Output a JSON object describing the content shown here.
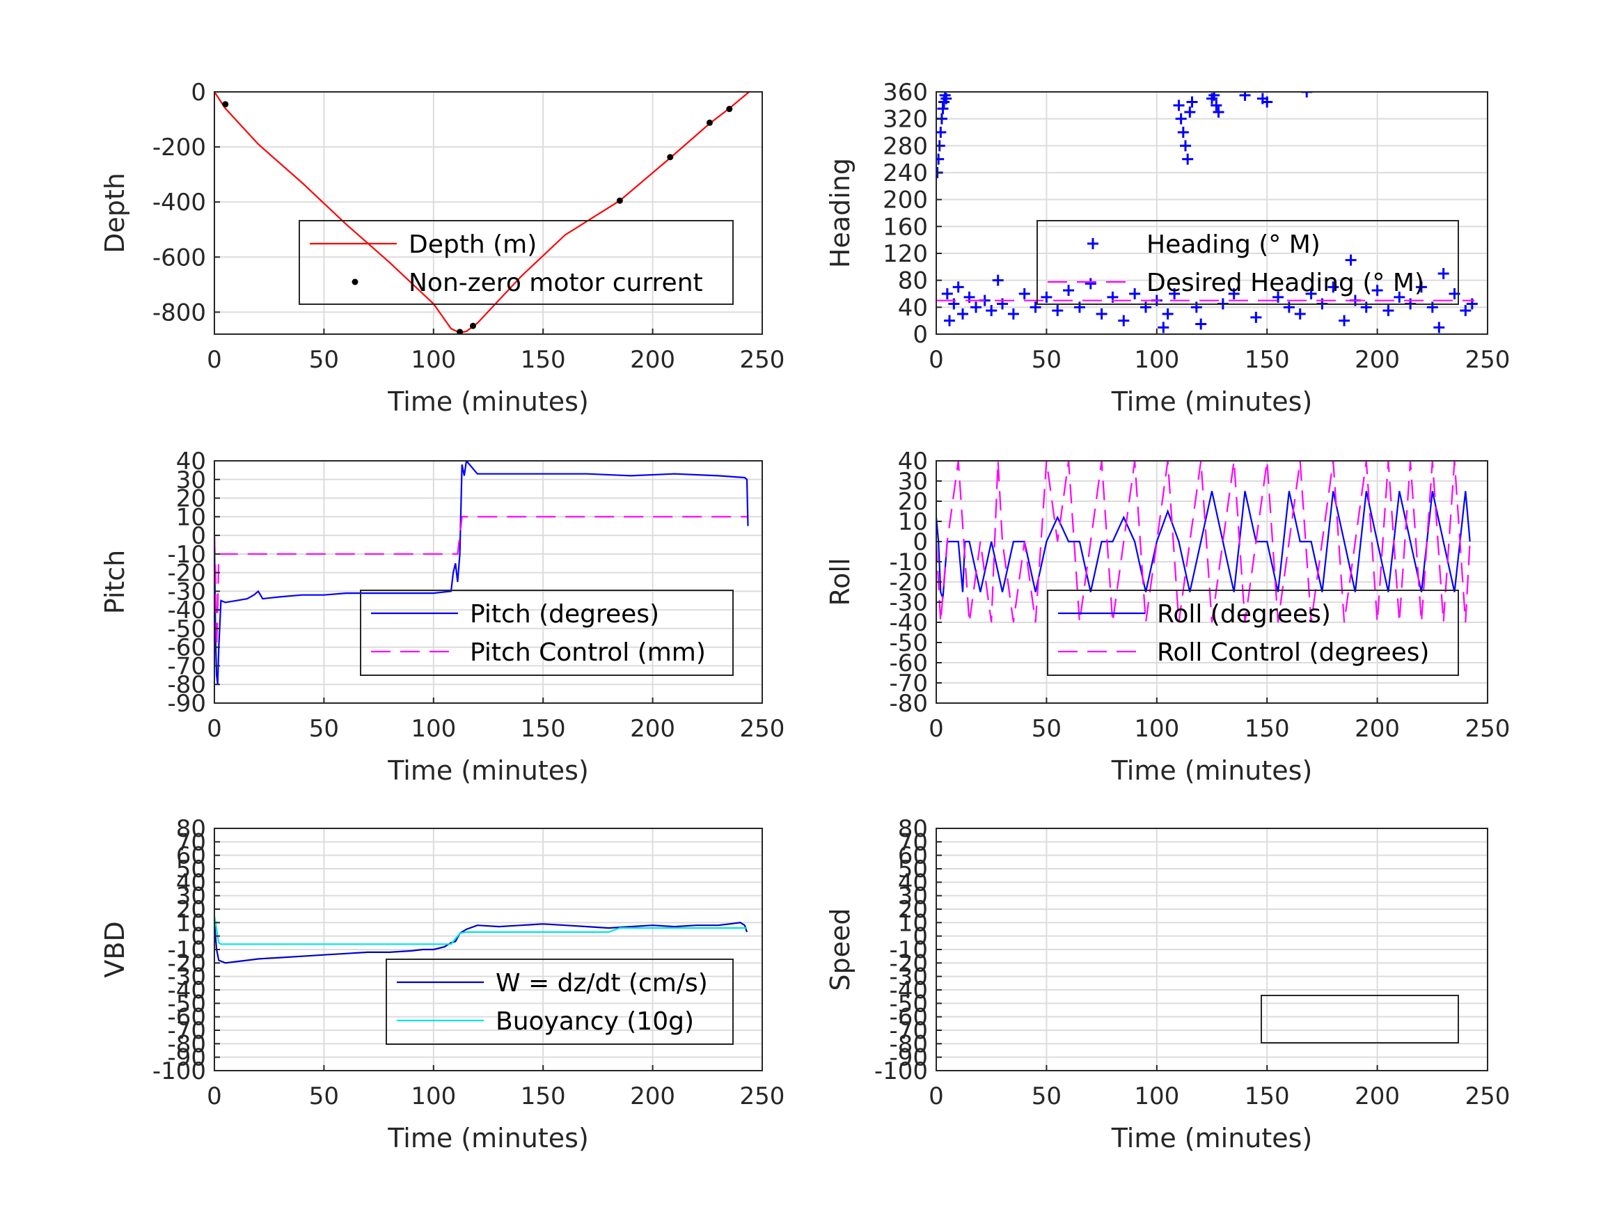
{
  "chart_data": [
    {
      "id": "depth",
      "type": "line",
      "xlabel": "Time (minutes)",
      "ylabel": "Depth",
      "xlim": [
        0,
        250
      ],
      "ylim": [
        -880,
        0
      ],
      "xticks": [
        "0",
        "50",
        "100",
        "150",
        "200",
        "250"
      ],
      "yticks": [
        "-800",
        "-600",
        "-400",
        "-200",
        "0"
      ],
      "ytick_values": [
        -800,
        -600,
        -400,
        -200,
        0
      ],
      "grid": true,
      "legend_position": "center-right",
      "series": [
        {
          "name": "Depth (m)",
          "style": "line",
          "color": "#ff0000",
          "x": [
            0,
            5,
            20,
            40,
            60,
            80,
            100,
            108,
            112,
            115,
            120,
            140,
            160,
            185,
            208,
            226,
            235,
            244
          ],
          "y": [
            0,
            -60,
            -190,
            -330,
            -480,
            -620,
            -770,
            -860,
            -875,
            -870,
            -840,
            -670,
            -520,
            -395,
            -240,
            -115,
            -60,
            0
          ]
        },
        {
          "name": "Non-zero motor current",
          "style": "dots",
          "color": "#000000",
          "x": [
            5,
            112,
            118,
            185,
            208,
            226,
            235
          ],
          "y": [
            -45,
            -872,
            -850,
            -395,
            -237,
            -112,
            -62
          ]
        }
      ]
    },
    {
      "id": "heading",
      "type": "scatter",
      "xlabel": "Time (minutes)",
      "ylabel": "Heading",
      "xlim": [
        0,
        250
      ],
      "ylim": [
        0,
        360
      ],
      "xticks": [
        "0",
        "50",
        "100",
        "150",
        "200",
        "250"
      ],
      "yticks": [
        "0",
        "40",
        "80",
        "120",
        "160",
        "200",
        "240",
        "280",
        "320",
        "360"
      ],
      "ytick_values": [
        0,
        40,
        80,
        120,
        160,
        200,
        240,
        280,
        320,
        360
      ],
      "grid": true,
      "legend_position": "center-right",
      "series": [
        {
          "name": "Heading (° M)",
          "style": "plus",
          "color": "#0000ff",
          "x": [
            0.5,
            1,
            1.5,
            2,
            2.5,
            3,
            3.5,
            4,
            4.5,
            5,
            6,
            8,
            10,
            12,
            15,
            18,
            22,
            25,
            28,
            30,
            35,
            40,
            45,
            50,
            55,
            60,
            65,
            70,
            75,
            80,
            85,
            90,
            95,
            100,
            103,
            105,
            108,
            110,
            111,
            112,
            113,
            114,
            115,
            116,
            118,
            120,
            125,
            126,
            127,
            128,
            130,
            135,
            140,
            145,
            148,
            150,
            155,
            160,
            165,
            168,
            170,
            175,
            180,
            185,
            188,
            190,
            195,
            200,
            205,
            210,
            215,
            220,
            225,
            228,
            230,
            235,
            240,
            243
          ],
          "y": [
            240,
            260,
            280,
            300,
            320,
            335,
            345,
            355,
            350,
            60,
            20,
            45,
            70,
            30,
            55,
            40,
            50,
            35,
            80,
            45,
            30,
            60,
            40,
            55,
            35,
            65,
            40,
            75,
            30,
            55,
            20,
            60,
            40,
            50,
            10,
            30,
            60,
            340,
            320,
            300,
            280,
            260,
            330,
            345,
            40,
            15,
            350,
            355,
            340,
            330,
            45,
            60,
            355,
            25,
            350,
            345,
            55,
            40,
            30,
            360,
            60,
            45,
            70,
            20,
            110,
            50,
            40,
            65,
            35,
            55,
            45,
            70,
            40,
            10,
            90,
            60,
            35,
            45
          ]
        },
        {
          "name": "Desired Heading (° M)",
          "style": "dash",
          "color": "#ff00ff",
          "x": [
            0,
            50,
            100,
            150,
            200,
            244
          ],
          "y": [
            50,
            50,
            50,
            50,
            50,
            50
          ]
        }
      ]
    },
    {
      "id": "pitch",
      "type": "line",
      "xlabel": "Time (minutes)",
      "ylabel": "Pitch",
      "xlim": [
        0,
        250
      ],
      "ylim": [
        -90,
        40
      ],
      "xticks": [
        "0",
        "50",
        "100",
        "150",
        "200",
        "250"
      ],
      "yticks": [
        "-90",
        "-80",
        "-70",
        "-60",
        "-50",
        "-40",
        "-30",
        "-20",
        "-10",
        "0",
        "10",
        "20",
        "30",
        "40"
      ],
      "ytick_values": [
        -90,
        -80,
        -70,
        -60,
        -50,
        -40,
        -30,
        -20,
        -10,
        0,
        10,
        20,
        30,
        40
      ],
      "grid": true,
      "legend_position": "bottom-right",
      "series": [
        {
          "name": "Pitch (degrees)",
          "style": "line",
          "color": "#0000ff",
          "x": [
            0,
            0.5,
            1,
            1.5,
            2,
            3,
            5,
            10,
            15,
            18,
            20,
            22,
            30,
            40,
            50,
            60,
            70,
            80,
            90,
            100,
            108,
            109,
            110,
            111,
            112,
            113,
            114,
            115,
            120,
            130,
            150,
            170,
            190,
            210,
            230,
            242,
            243,
            243.5
          ],
          "y": [
            0,
            -55,
            -75,
            -80,
            -60,
            -35,
            -36,
            -35,
            -34,
            -32,
            -30,
            -34,
            -33,
            -32,
            -32,
            -31,
            -31,
            -31,
            -31,
            -31,
            -30,
            -20,
            -15,
            -25,
            -10,
            38,
            32,
            40,
            33,
            33,
            33,
            33,
            32,
            33,
            32,
            31,
            30,
            5
          ]
        },
        {
          "name": "Pitch Control (mm)",
          "style": "dash",
          "color": "#ff00ff",
          "x": [
            0,
            0.5,
            1,
            1.5,
            2,
            3,
            50,
            100,
            111,
            112,
            113,
            150,
            200,
            243
          ],
          "y": [
            0,
            -20,
            -60,
            -40,
            -10,
            -10,
            -10,
            -10,
            -10,
            0,
            10,
            10,
            10,
            10
          ]
        }
      ]
    },
    {
      "id": "roll",
      "type": "line",
      "xlabel": "Time (minutes)",
      "ylabel": "Roll",
      "xlim": [
        0,
        250
      ],
      "ylim": [
        -80,
        40
      ],
      "xticks": [
        "0",
        "50",
        "100",
        "150",
        "200",
        "250"
      ],
      "yticks": [
        "-80",
        "-70",
        "-60",
        "-50",
        "-40",
        "-30",
        "-20",
        "-10",
        "0",
        "10",
        "20",
        "30",
        "40"
      ],
      "ytick_values": [
        -80,
        -70,
        -60,
        -50,
        -40,
        -30,
        -20,
        -10,
        0,
        10,
        20,
        30,
        40
      ],
      "grid": true,
      "legend_position": "bottom-right",
      "series": [
        {
          "name": "Roll (degrees)",
          "style": "line",
          "color": "#0000ff",
          "x": [
            0,
            1,
            2,
            3,
            5,
            10,
            12,
            13,
            15,
            20,
            25,
            30,
            35,
            40,
            45,
            50,
            55,
            60,
            65,
            70,
            75,
            80,
            85,
            90,
            95,
            100,
            105,
            110,
            115,
            120,
            125,
            130,
            135,
            140,
            145,
            150,
            155,
            160,
            165,
            170,
            175,
            180,
            185,
            190,
            195,
            200,
            205,
            210,
            215,
            220,
            225,
            230,
            235,
            240,
            242
          ],
          "y": [
            12,
            0,
            -25,
            -28,
            0,
            0,
            -25,
            0,
            0,
            -25,
            0,
            -25,
            0,
            0,
            -25,
            0,
            12,
            0,
            0,
            -25,
            0,
            0,
            12,
            0,
            -25,
            0,
            15,
            0,
            -25,
            0,
            25,
            0,
            -25,
            25,
            0,
            0,
            -25,
            25,
            0,
            0,
            -25,
            25,
            0,
            -25,
            25,
            0,
            -25,
            25,
            0,
            -25,
            25,
            0,
            -25,
            25,
            0
          ]
        },
        {
          "name": "Roll Control (degrees)",
          "style": "dash",
          "color": "#ff00ff",
          "x": [
            0,
            2,
            5,
            10,
            15,
            20,
            25,
            28,
            30,
            35,
            40,
            45,
            50,
            55,
            60,
            65,
            70,
            75,
            80,
            85,
            90,
            95,
            100,
            105,
            110,
            115,
            120,
            125,
            130,
            135,
            140,
            145,
            150,
            155,
            160,
            165,
            170,
            175,
            180,
            185,
            190,
            195,
            200,
            205,
            210,
            215,
            220,
            225,
            230,
            235,
            240,
            242
          ],
          "y": [
            0,
            -40,
            0,
            40,
            -40,
            0,
            -40,
            40,
            0,
            -40,
            0,
            -40,
            40,
            0,
            40,
            -40,
            0,
            40,
            -40,
            0,
            40,
            -40,
            0,
            40,
            -40,
            0,
            40,
            -40,
            0,
            40,
            -40,
            0,
            40,
            -40,
            0,
            40,
            -40,
            0,
            40,
            -40,
            0,
            40,
            -40,
            40,
            -40,
            40,
            -40,
            40,
            -40,
            40,
            -40,
            0
          ]
        }
      ]
    },
    {
      "id": "vbd",
      "type": "line",
      "xlabel": "Time (minutes)",
      "ylabel": "VBD",
      "xlim": [
        0,
        250
      ],
      "ylim": [
        -100,
        80
      ],
      "xticks": [
        "0",
        "50",
        "100",
        "150",
        "200",
        "250"
      ],
      "yticks": [
        "-100",
        "-90",
        "-80",
        "-70",
        "-60",
        "-50",
        "-40",
        "-30",
        "-20",
        "-10",
        "0",
        "10",
        "20",
        "30",
        "40",
        "50",
        "60",
        "70",
        "80"
      ],
      "ytick_values": [
        -100,
        -90,
        -80,
        -70,
        -60,
        -50,
        -40,
        -30,
        -20,
        -10,
        0,
        10,
        20,
        30,
        40,
        50,
        60,
        70,
        80
      ],
      "grid": true,
      "legend_position": "bottom-right",
      "series": [
        {
          "name": "W = dz/dt (cm/s)",
          "style": "line",
          "color": "#0000c8",
          "x": [
            0,
            1,
            2,
            5,
            10,
            15,
            20,
            30,
            40,
            50,
            60,
            70,
            80,
            90,
            95,
            100,
            105,
            108,
            110,
            112,
            115,
            120,
            130,
            140,
            150,
            160,
            170,
            180,
            190,
            200,
            210,
            220,
            230,
            235,
            240,
            242,
            243
          ],
          "y": [
            10,
            -10,
            -18,
            -20,
            -19,
            -18,
            -17,
            -16,
            -15,
            -14,
            -13,
            -12,
            -12,
            -11,
            -10,
            -10,
            -8,
            -5,
            -4,
            2,
            5,
            8,
            7,
            8,
            9,
            8,
            7,
            6,
            7,
            8,
            7,
            8,
            8,
            9,
            10,
            8,
            3
          ]
        },
        {
          "name": "Buoyancy (10g)",
          "style": "line",
          "color": "#00e5e5",
          "x": [
            0,
            1,
            2,
            3,
            50,
            100,
            108,
            110,
            112,
            115,
            150,
            180,
            185,
            200,
            243
          ],
          "y": [
            15,
            5,
            -5,
            -6,
            -6,
            -6,
            -6,
            -2,
            2,
            3,
            3,
            3,
            6,
            6,
            6
          ]
        }
      ]
    },
    {
      "id": "speed",
      "type": "line",
      "xlabel": "Time (minutes)",
      "ylabel": "Speed",
      "xlim": [
        0,
        250
      ],
      "ylim": [
        -100,
        80
      ],
      "xticks": [
        "0",
        "50",
        "100",
        "150",
        "200",
        "250"
      ],
      "yticks": [
        "-100",
        "-90",
        "-80",
        "-70",
        "-60",
        "-50",
        "-40",
        "-30",
        "-20",
        "-10",
        "0",
        "10",
        "20",
        "30",
        "40",
        "50",
        "60",
        "70",
        "80"
      ],
      "ytick_values": [
        -100,
        -90,
        -80,
        -70,
        -60,
        -50,
        -40,
        -30,
        -20,
        -10,
        0,
        10,
        20,
        30,
        40,
        50,
        60,
        70,
        80
      ],
      "grid": true,
      "legend_position": "bottom-right",
      "series": []
    }
  ]
}
